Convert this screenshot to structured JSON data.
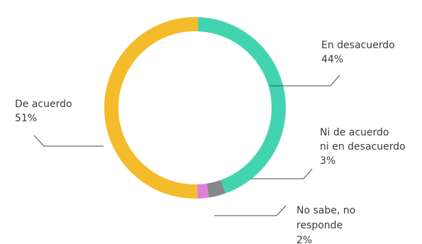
{
  "chart_data": {
    "type": "pie",
    "style": "donut",
    "slices": [
      {
        "name": "En desacuerdo",
        "label_lines": [
          "En desacuerdo"
        ],
        "value": 44,
        "display": "44%",
        "color": "#42D4B0"
      },
      {
        "name": "Ni de acuerdo ni en desacuerdo",
        "label_lines": [
          "Ni de acuerdo",
          "ni en desacuerdo"
        ],
        "value": 3,
        "display": "3%",
        "color": "#86878B"
      },
      {
        "name": "No sabe, no responde",
        "label_lines": [
          "No sabe, no",
          "responde"
        ],
        "value": 2,
        "display": "2%",
        "color": "#DE7FD8"
      },
      {
        "name": "De acuerdo",
        "label_lines": [
          "De acuerdo"
        ],
        "value": 51,
        "display": "51%",
        "color": "#F4BC2B"
      }
    ],
    "start": "top",
    "direction": "clockwise",
    "legend": "none"
  }
}
